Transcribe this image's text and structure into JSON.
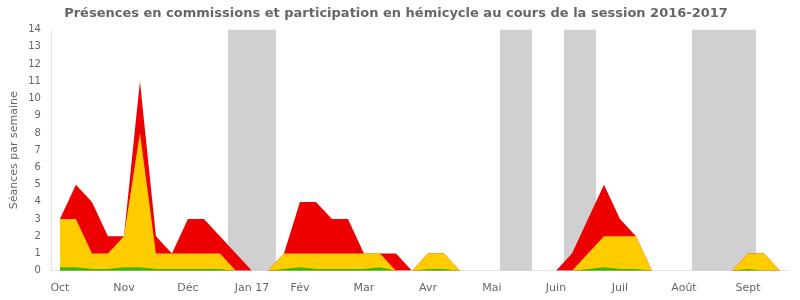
{
  "chart_data": {
    "type": "area",
    "title": "Présences en commissions et participation en hémicycle au cours de la session 2016-2017",
    "y_label": "Séances par semaine",
    "x": [
      0,
      1,
      2,
      3,
      4,
      5,
      6,
      7,
      8,
      9,
      10,
      11,
      12,
      13,
      14,
      15,
      16,
      17,
      18,
      19,
      20,
      21,
      22,
      23,
      24,
      25,
      26,
      27,
      28,
      29,
      30,
      31,
      32,
      33,
      34,
      35,
      36,
      37,
      38,
      39,
      40,
      41,
      42,
      43,
      44,
      45
    ],
    "series": [
      {
        "color": "#ee0000",
        "values": [
          3,
          5,
          4,
          2,
          2,
          11,
          2,
          1,
          3,
          3,
          2,
          1,
          0,
          0,
          1,
          4,
          4,
          3,
          3,
          1,
          1,
          1,
          0,
          1,
          1,
          0,
          0,
          0,
          0,
          0,
          0,
          0,
          1,
          3,
          5,
          3,
          2,
          0,
          0,
          0,
          0,
          0,
          0,
          1,
          1,
          0
        ]
      },
      {
        "color": "#ffcc00",
        "values": [
          3,
          3,
          1,
          1,
          2,
          8,
          1,
          1,
          1,
          1,
          1,
          0,
          0,
          0,
          1,
          1,
          1,
          1,
          1,
          1,
          1,
          0,
          0,
          1,
          1,
          0,
          0,
          0,
          0,
          0,
          0,
          0,
          0,
          1,
          2,
          2,
          2,
          0,
          0,
          0,
          0,
          0,
          0,
          1,
          1,
          0
        ]
      },
      {
        "color": "#33bb00",
        "values": [
          0.2,
          0.2,
          0.1,
          0.1,
          0.2,
          0.2,
          0.1,
          0.1,
          0.1,
          0.1,
          0.1,
          0.0,
          0.0,
          0.0,
          0.1,
          0.2,
          0.1,
          0.1,
          0.1,
          0.1,
          0.2,
          0.0,
          0.0,
          0.1,
          0.1,
          0.0,
          0.0,
          0.0,
          0.0,
          0.0,
          0.0,
          0.0,
          0.0,
          0.1,
          0.2,
          0.1,
          0.1,
          0.0,
          0.0,
          0.0,
          0.0,
          0.0,
          0.0,
          0.1,
          0.0,
          0.0
        ]
      }
    ],
    "bands": [
      [
        10.5,
        13.5
      ],
      [
        27.5,
        29.5
      ],
      [
        31.5,
        33.5
      ],
      [
        39.5,
        43.5
      ]
    ],
    "xlim": [
      -0.5,
      45.5
    ],
    "xticks": [
      {
        "value": 0,
        "label": "Oct"
      },
      {
        "value": 4,
        "label": "Nov"
      },
      {
        "value": 8,
        "label": "Déc"
      },
      {
        "value": 12,
        "label": "Jan 17"
      },
      {
        "value": 15,
        "label": "Fév"
      },
      {
        "value": 19,
        "label": "Mar"
      },
      {
        "value": 23,
        "label": "Avr"
      },
      {
        "value": 27,
        "label": "Mai"
      },
      {
        "value": 31,
        "label": "Juin"
      },
      {
        "value": 35,
        "label": "Juil"
      },
      {
        "value": 39,
        "label": "Août"
      },
      {
        "value": 43,
        "label": "Sept"
      }
    ],
    "ylim": [
      0,
      14
    ],
    "yticks": [
      0,
      1,
      2,
      3,
      4,
      5,
      6,
      7,
      8,
      9,
      10,
      11,
      12,
      13,
      14
    ],
    "grid": false,
    "legend": false
  }
}
